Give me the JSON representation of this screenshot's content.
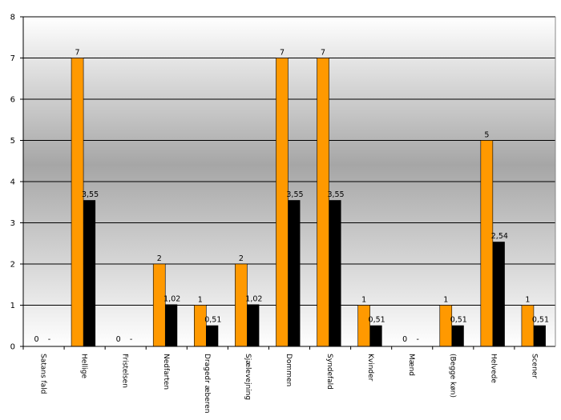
{
  "chart_data": {
    "type": "bar",
    "categories": [
      "Satans fald",
      "Hellige",
      "Fristelsen",
      "Nedfarten",
      "Dragedr æberen",
      "Sjælevejning",
      "Dommen",
      "Syndefald",
      "Kvinder",
      "Mænd",
      "(Begge køn)",
      "Helvede",
      "Scener"
    ],
    "series": [
      {
        "color": "#ff9900",
        "values": [
          0,
          7,
          0,
          2,
          1,
          2,
          7,
          7,
          1,
          0,
          1,
          5,
          1
        ],
        "labels": [
          "0",
          "7",
          "0",
          "2",
          "1",
          "2",
          "7",
          "7",
          "1",
          "0",
          "1",
          "5",
          "1"
        ]
      },
      {
        "color": "#000000",
        "values": [
          null,
          3.55,
          null,
          1.02,
          0.51,
          1.02,
          3.55,
          3.55,
          0.51,
          null,
          0.51,
          2.54,
          0.51
        ],
        "labels": [
          "-",
          "3,55",
          "-",
          "1,02",
          "0,51",
          "1,02",
          "3,55",
          "3,55",
          "0,51",
          "-",
          "0,51",
          "2,54",
          "0,51"
        ]
      }
    ],
    "ylim": [
      0,
      8
    ],
    "yticks": [
      "0",
      "1",
      "2",
      "3",
      "4",
      "5",
      "6",
      "7",
      "8"
    ],
    "grid": true,
    "background": "gradient-gray"
  }
}
